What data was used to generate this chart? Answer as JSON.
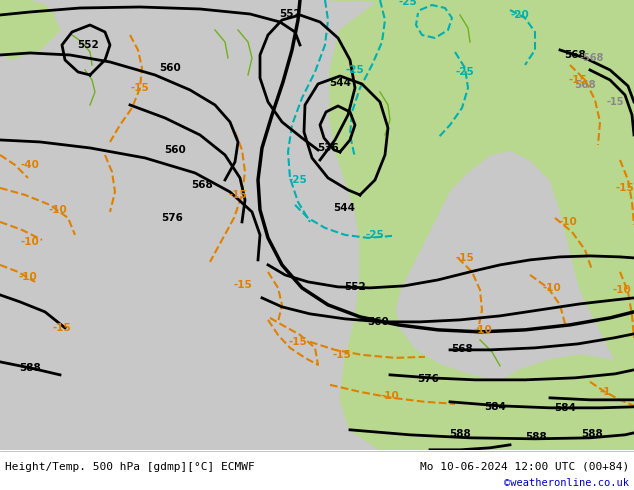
{
  "title_left": "Height/Temp. 500 hPa [gdmp][°C] ECMWF",
  "title_right": "Mo 10-06-2024 12:00 UTC (00+84)",
  "credit": "©weatheronline.co.uk",
  "bg_gray": "#c8c8c8",
  "bg_green": "#b8d890",
  "bg_white": "#ffffff",
  "col_z500": "#000000",
  "col_temp": "#e08000",
  "col_cyan": "#00b0b0",
  "col_green": "#70b020",
  "col_credit": "#0000cc",
  "fig_width": 6.34,
  "fig_height": 4.9,
  "dpi": 100
}
